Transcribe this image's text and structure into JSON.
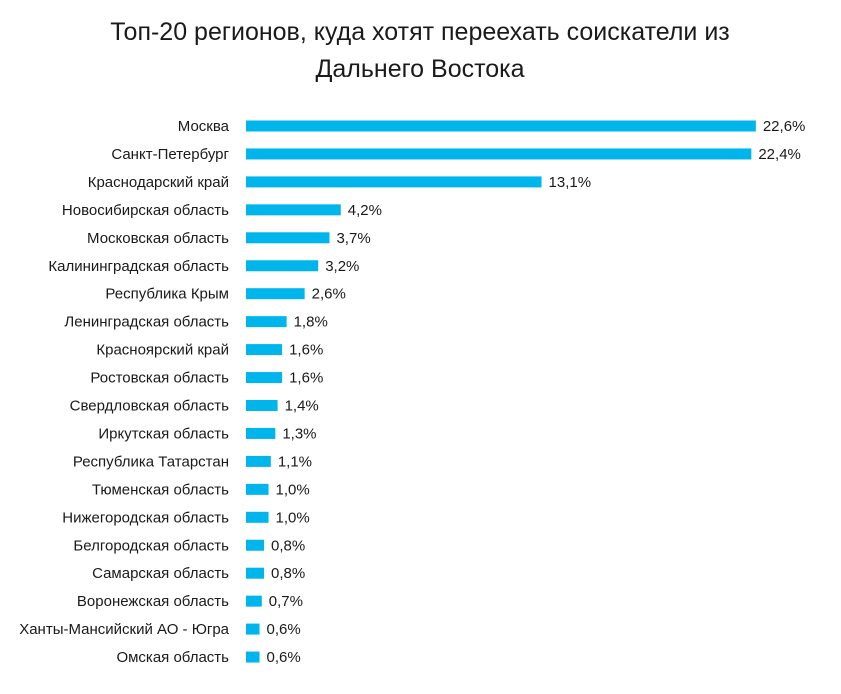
{
  "chart_data": {
    "type": "bar",
    "orientation": "horizontal",
    "title": "Топ-20 регионов, куда хотят переехать соискатели из Дальнего Востока",
    "title_lines": [
      "Топ-20 регионов, куда хотят переехать соискатели из",
      "Дальнего Востока"
    ],
    "xlabel": "",
    "ylabel": "",
    "unit": "%",
    "grid": false,
    "legend": "none",
    "bar_color": "#00b5ec",
    "categories": [
      "Москва",
      "Санкт-Петербург",
      "Краснодарский край",
      "Новосибирская область",
      "Московская область",
      "Калининградская область",
      "Республика Крым",
      "Ленинградская область",
      "Красноярский край",
      "Ростовская область",
      "Свердловская область",
      "Иркутская область",
      "Республика Татарстан",
      "Тюменская область",
      "Нижегородская область",
      "Белгородская область",
      "Самарская область",
      "Воронежская область",
      "Ханты-Мансийский АО - Югра",
      "Омская область"
    ],
    "values": [
      22.6,
      22.4,
      13.1,
      4.2,
      3.7,
      3.2,
      2.6,
      1.8,
      1.6,
      1.6,
      1.4,
      1.3,
      1.1,
      1.0,
      1.0,
      0.8,
      0.8,
      0.7,
      0.6,
      0.6
    ],
    "value_labels": [
      "22,6%",
      "22,4%",
      "13,1%",
      "4,2%",
      "3,7%",
      "3,2%",
      "2,6%",
      "1,8%",
      "1,6%",
      "1,6%",
      "1,4%",
      "1,3%",
      "1,1%",
      "1,0%",
      "1,0%",
      "0,8%",
      "0,8%",
      "0,7%",
      "0,6%",
      "0,6%"
    ]
  }
}
